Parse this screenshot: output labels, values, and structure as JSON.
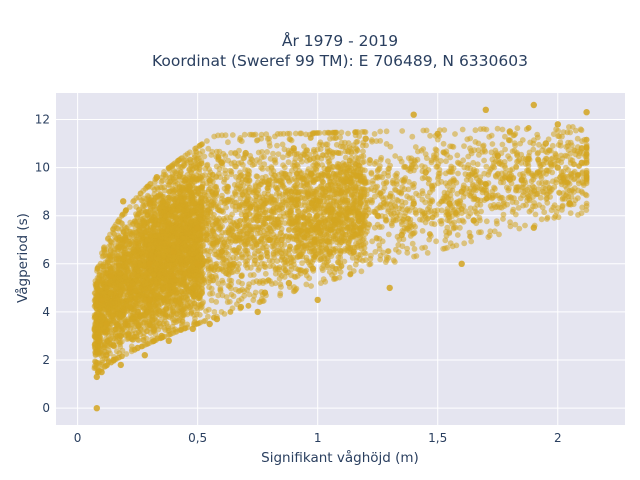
{
  "chart_data": {
    "type": "scatter",
    "title_line1": "År 1979 - 2019",
    "title_line2": "Koordinat (Sweref 99 TM): E 706489, N 6330603",
    "xlabel": "Signifikant våghöjd (m)",
    "ylabel": "Vågperiod (s)",
    "xlim": [
      -0.09,
      2.28
    ],
    "ylim": [
      -0.7,
      13.1
    ],
    "x_ticks": [
      {
        "value": 0,
        "label": "0"
      },
      {
        "value": 0.5,
        "label": "0,5"
      },
      {
        "value": 1,
        "label": "1"
      },
      {
        "value": 1.5,
        "label": "1,5"
      },
      {
        "value": 2,
        "label": "2"
      }
    ],
    "y_ticks": [
      {
        "value": 0,
        "label": "0"
      },
      {
        "value": 2,
        "label": "2"
      },
      {
        "value": 4,
        "label": "4"
      },
      {
        "value": 6,
        "label": "6"
      },
      {
        "value": 8,
        "label": "8"
      },
      {
        "value": 10,
        "label": "10"
      },
      {
        "value": 12,
        "label": "12"
      }
    ],
    "grid": true,
    "marker_color": "#D4A520",
    "background_color": "#E5E5F0",
    "x": [
      0.08,
      0.1,
      0.12,
      0.15,
      0.18,
      0.2,
      0.25,
      0.3,
      0.4,
      0.5,
      0.6,
      0.8,
      1.0,
      1.2,
      1.4,
      1.6,
      1.8,
      2.0,
      2.1,
      0.1,
      0.14,
      0.2,
      0.3,
      0.45,
      0.6,
      0.9,
      1.2,
      1.5,
      1.8,
      2.0,
      0.15,
      0.25,
      0.35,
      0.55,
      0.75,
      1.0,
      1.3,
      1.6,
      1.9,
      2.05,
      0.12,
      0.22,
      0.4,
      0.7,
      1.1,
      1.45,
      1.75,
      1.95,
      0.09,
      0.3,
      0.5,
      0.65,
      0.85,
      1.05,
      1.25,
      1.55,
      1.85,
      2.1,
      0.08,
      0.18,
      0.28,
      0.38,
      0.48,
      0.58,
      0.68,
      0.78,
      0.88,
      0.98,
      1.15,
      1.35,
      1.65,
      0.19,
      0.33,
      0.7,
      1.4,
      1.7,
      1.9,
      2.12
    ],
    "y": [
      0.0,
      1.5,
      2.2,
      2.6,
      3.0,
      3.5,
      4.0,
      4.5,
      5.5,
      6.0,
      6.5,
      7.0,
      7.5,
      8.0,
      8.5,
      9.0,
      9.5,
      10.0,
      10.2,
      4.5,
      5.5,
      7.0,
      8.5,
      9.5,
      10.2,
      10.8,
      11.2,
      11.4,
      11.5,
      11.8,
      2.0,
      2.5,
      3.0,
      3.5,
      4.0,
      4.5,
      5.0,
      6.0,
      7.5,
      8.5,
      3.5,
      5.0,
      6.5,
      8.0,
      9.0,
      9.8,
      10.5,
      11.0,
      2.8,
      6.0,
      7.5,
      6.0,
      7.0,
      6.5,
      8.0,
      8.5,
      9.5,
      10.8,
      1.3,
      1.8,
      2.2,
      2.8,
      3.3,
      3.7,
      4.2,
      4.8,
      5.2,
      5.8,
      6.5,
      7.2,
      7.8,
      8.6,
      9.6,
      10.6,
      12.2,
      12.4,
      12.6,
      12.3
    ]
  }
}
